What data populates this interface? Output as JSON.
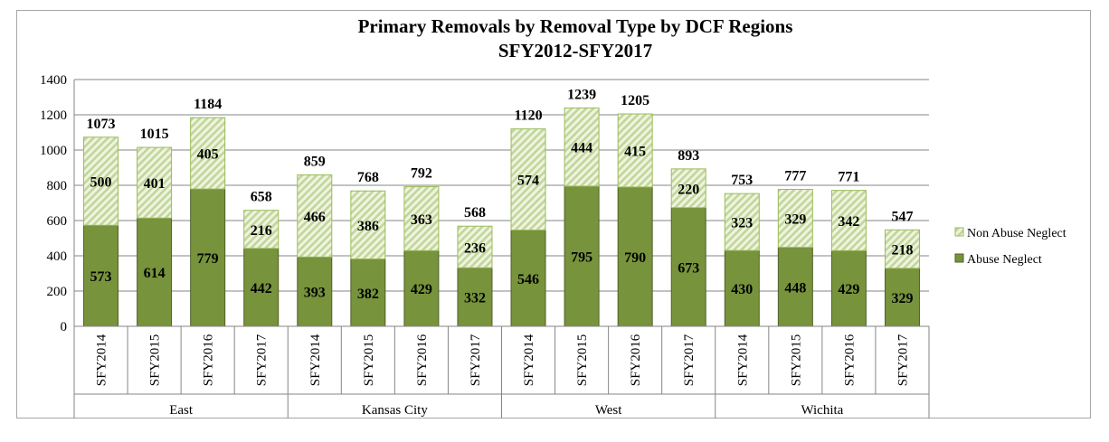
{
  "chart_data": {
    "type": "bar",
    "stacked": true,
    "title": "Primary Removals by Removal Type by DCF Regions",
    "subtitle": "SFY2012-SFY2017",
    "xlabel": "",
    "ylabel": "",
    "ylim": [
      0,
      1400
    ],
    "yticks": [
      0,
      200,
      400,
      600,
      800,
      1000,
      1200,
      1400
    ],
    "grid": true,
    "legend_position": "right",
    "groups": [
      {
        "name": "East",
        "categories": [
          "SFY2014",
          "SFY2015",
          "SFY2016",
          "SFY2017"
        ]
      },
      {
        "name": "Kansas City",
        "categories": [
          "SFY2014",
          "SFY2015",
          "SFY2016",
          "SFY2017"
        ]
      },
      {
        "name": "West",
        "categories": [
          "SFY2014",
          "SFY2015",
          "SFY2016",
          "SFY2017"
        ]
      },
      {
        "name": "Wichita",
        "categories": [
          "SFY2014",
          "SFY2015",
          "SFY2016",
          "SFY2017"
        ]
      }
    ],
    "series": [
      {
        "name": "Abuse Neglect",
        "color": "#77933c",
        "values": [
          573,
          614,
          779,
          442,
          393,
          382,
          429,
          332,
          546,
          795,
          790,
          673,
          430,
          448,
          429,
          329
        ]
      },
      {
        "name": "Non Abuse Neglect",
        "color": "#d7e4bd",
        "values": [
          500,
          401,
          405,
          216,
          466,
          386,
          363,
          236,
          574,
          444,
          415,
          220,
          323,
          329,
          342,
          218
        ]
      }
    ],
    "totals": [
      1073,
      1015,
      1184,
      658,
      859,
      768,
      792,
      568,
      1120,
      1239,
      1205,
      893,
      753,
      777,
      771,
      547
    ]
  }
}
